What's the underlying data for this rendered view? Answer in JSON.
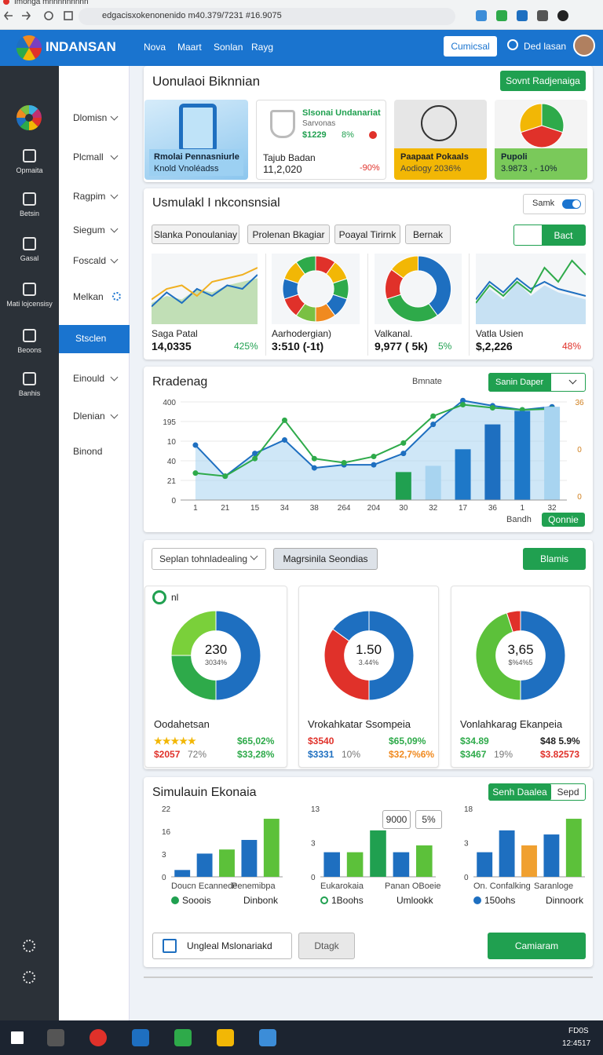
{
  "browser": {
    "tab": "Imonga mnnnnnnnnn",
    "url": "edgacisxokenonenido m40.379/7231 #16.9075"
  },
  "header": {
    "logo": "INDANSAN",
    "nav": [
      "Nova",
      "Maart",
      "Sonlan",
      "Rayg"
    ],
    "button": "Cumicsal",
    "user": "Ded lasan"
  },
  "rail": [
    "Opmaita",
    "Betsin",
    "Gasal",
    "Mati lojcensisy",
    "Beoons",
    "Banhis"
  ],
  "menu": [
    "Dlomisn",
    "Plcmall",
    "Ragpim",
    "Siegum",
    "Foscald",
    "Melkan",
    "Stsclen",
    "Einould",
    "Dlenian",
    "Binond"
  ],
  "overview": {
    "title": "Uonulaoi Biknnian",
    "button": "Sovnt Radjenaiga",
    "tile_a": {
      "label": "Rmolai Pennasniurle",
      "sub": "Knold Vnoléadss"
    },
    "tile_b": {
      "title": "Slsonai Undanariat",
      "subtitle": "Sarvonas",
      "price": "$1229",
      "pct": "8%",
      "label": "Tajub Badan",
      "value": "11,2,020",
      "change": "-90%"
    },
    "tile_c": {
      "label": "Paapaat Pokaals",
      "sub": "Aodiogy 2036%"
    },
    "tile_d": {
      "label": "Pupoli",
      "sub": "3.9873 , - 10%",
      "chart_data": {
        "type": "pie",
        "values": [
          30,
          40,
          30
        ],
        "colors": [
          "#2eaa4a",
          "#e0312a",
          "#f2b705"
        ]
      }
    }
  },
  "insights": {
    "title": "Usmulakl I nkconsnsial",
    "toggle": "Samk",
    "chips": [
      "Slanka Ponoulaniay",
      "Prolenan Bkagiar",
      "Poayal Tirirnk",
      "Bernak"
    ],
    "button": "Bact",
    "charts": [
      {
        "label": "Saga Patal",
        "value": "14,0335",
        "change": "425%",
        "chart_data": {
          "type": "line",
          "ylim": [
            0,
            100
          ],
          "series": [
            {
              "color": "#9fd18a",
              "area": true,
              "values": [
                30,
                40,
                35,
                50,
                45,
                55,
                60,
                65
              ]
            },
            {
              "color": "#1e6fc0",
              "values": [
                25,
                45,
                30,
                50,
                40,
                55,
                50,
                70
              ]
            },
            {
              "color": "#f0b020",
              "values": [
                35,
                50,
                55,
                40,
                60,
                65,
                70,
                80
              ]
            }
          ]
        }
      },
      {
        "label": "Aarhodergian)",
        "value": "3:510 (-1t)",
        "change": "",
        "chart_data": {
          "type": "donut",
          "values": [
            10,
            10,
            10,
            10,
            10,
            10,
            10,
            10,
            10,
            10
          ],
          "colors": [
            "#e0312a",
            "#f2b705",
            "#2eaa4a",
            "#1e6fc0",
            "#f08a20",
            "#7ac043",
            "#e0312a",
            "#1e6fc0",
            "#f2b705",
            "#2eaa4a"
          ]
        }
      },
      {
        "label": "Valkanal.",
        "value": "9,977 ( 5k)",
        "change": "5%",
        "chart_data": {
          "type": "donut",
          "values": [
            40,
            30,
            15,
            15
          ],
          "colors": [
            "#1e6fc0",
            "#2eaa4a",
            "#e0312a",
            "#f2b705"
          ]
        }
      },
      {
        "label": "Vatla Usien",
        "value": "$,2,226",
        "change": "48%",
        "chart_data": {
          "type": "line",
          "ylim": [
            0,
            100
          ],
          "series": [
            {
              "color": "#a8d4f0",
              "area": true,
              "values": [
                30,
                50,
                35,
                60,
                40,
                55,
                45,
                40,
                35
              ]
            },
            {
              "color": "#1e6fc0",
              "values": [
                35,
                60,
                45,
                65,
                50,
                60,
                50,
                45,
                40
              ]
            },
            {
              "color": "#2eaa4a",
              "values": [
                30,
                55,
                40,
                60,
                45,
                80,
                60,
                90,
                70
              ]
            }
          ]
        }
      }
    ]
  },
  "trend": {
    "title": "Rradenag",
    "link": "Bmnate",
    "dropdown": "Sanin Daper",
    "footer": "Bandh",
    "button": "Qonnie",
    "chart_data": {
      "type": "combo",
      "x_labels": [
        "1",
        "21",
        "15",
        "34",
        "38",
        "264",
        "204",
        "30",
        "32",
        "17",
        "36",
        "1",
        "32"
      ],
      "y_labels": [
        "400",
        "195",
        "10",
        "40",
        "21",
        "0"
      ],
      "y2_labels": [
        "36",
        "0",
        "0"
      ],
      "ylim": [
        0,
        100
      ],
      "series": [
        {
          "type": "line",
          "color": "#1e6fc0",
          "area": true,
          "values": [
            53,
            23,
            45,
            58,
            31,
            34,
            34,
            45,
            73,
            96,
            91,
            87,
            90
          ]
        },
        {
          "type": "line",
          "color": "#2eaa4a",
          "values": [
            26,
            23,
            40,
            77,
            40,
            36,
            42,
            55,
            81,
            92,
            89,
            87,
            88
          ]
        },
        {
          "type": "bar",
          "colors": [
            "#20a050",
            "#a8d4f0",
            "#1e78c8",
            "#1e6fc0",
            "#1e78c8",
            "#a8d4f0"
          ],
          "values": [
            null,
            null,
            null,
            null,
            null,
            null,
            null,
            27,
            33,
            49,
            73,
            86,
            90
          ]
        }
      ]
    }
  },
  "segments": {
    "dropdown": "Seplan tohnladealing",
    "button": "Magrsinila Seondias",
    "action": "Blamis",
    "badge": "nl",
    "cards": [
      {
        "center": "230",
        "center_sub": "3034%",
        "title": "Oodahetsan",
        "rows": [
          [
            {
              "text": "★★★★★",
              "color": "#f2b705"
            },
            {
              "text": "$65,02%",
              "color": "#2eaa4a"
            }
          ],
          [
            {
              "text": "$2057",
              "color": "#e0312a"
            },
            {
              "text": "72%",
              "color": "#777"
            },
            {
              "text": "$33,28%",
              "color": "#2eaa4a"
            }
          ]
        ],
        "chart_data": {
          "type": "donut",
          "values": [
            50,
            25,
            25
          ],
          "colors": [
            "#1e6fc0",
            "#2eaa4a",
            "#7ad03a"
          ]
        }
      },
      {
        "center": "1.50",
        "center_sub": "3.44%",
        "title": "Vrokahkatar Ssompeia",
        "rows": [
          [
            {
              "text": "$3540",
              "color": "#e0312a"
            },
            {
              "text": "$65,09%",
              "color": "#2eaa4a"
            }
          ],
          [
            {
              "text": "$3331",
              "color": "#1e6fc0"
            },
            {
              "text": "10%",
              "color": "#777"
            },
            {
              "text": "$32,7%6%",
              "color": "#f08a20"
            }
          ]
        ],
        "chart_data": {
          "type": "donut",
          "values": [
            50,
            35,
            15
          ],
          "colors": [
            "#1e6fc0",
            "#e0312a",
            "#1e6fc0"
          ]
        }
      },
      {
        "center": "3,65",
        "center_sub": "$%4%5",
        "title": "Vonlahkarag Ekanpeia",
        "rows": [
          [
            {
              "text": "$34.89",
              "color": "#2eaa4a"
            },
            {
              "text": "$48 5.9%",
              "color": "#222"
            }
          ],
          [
            {
              "text": "$3467",
              "color": "#2eaa4a"
            },
            {
              "text": "19%",
              "color": "#777"
            },
            {
              "text": "$3.82573",
              "color": "#e0312a"
            }
          ]
        ],
        "chart_data": {
          "type": "donut",
          "values": [
            50,
            45,
            5
          ],
          "colors": [
            "#1e6fc0",
            "#5cc13a",
            "#e0312a"
          ]
        }
      }
    ]
  },
  "economy": {
    "title": "Simulauin Ekonaia",
    "tabs": [
      "Senh Daalea",
      "Sepd"
    ],
    "boxes": [
      "9000",
      "5%"
    ],
    "groups": [
      {
        "y_labels": [
          "22",
          "16",
          "3",
          "0"
        ],
        "labels": [
          "Doucn Ecannede",
          "Penemibpa"
        ],
        "legend": [
          "Sooois",
          "Dinbonk"
        ],
        "chart_data": {
          "type": "bar",
          "ylim": [
            0,
            100
          ],
          "values": [
            10,
            34,
            40,
            54,
            85
          ],
          "colors": [
            "#1e6fc0",
            "#1e6fc0",
            "#5cc13a",
            "#1e6fc0",
            "#5cc13a"
          ]
        }
      },
      {
        "y_labels": [
          "13",
          "3",
          "0"
        ],
        "labels": [
          "Eukarokaia",
          "Panan OBoeie"
        ],
        "legend": [
          "1Boohs",
          "Umlookk"
        ],
        "chart_data": {
          "type": "bar",
          "ylim": [
            0,
            100
          ],
          "values": [
            36,
            36,
            68,
            36,
            46
          ],
          "colors": [
            "#1e6fc0",
            "#5cc13a",
            "#20a050",
            "#1e6fc0",
            "#5cc13a"
          ]
        }
      },
      {
        "y_labels": [
          "18",
          "3",
          "0"
        ],
        "labels": [
          "On. Confalking",
          "Saranloge"
        ],
        "legend": [
          "150ohs",
          "Dinnoork"
        ],
        "chart_data": {
          "type": "bar",
          "ylim": [
            0,
            100
          ],
          "values": [
            36,
            68,
            46,
            62,
            85
          ],
          "colors": [
            "#1e6fc0",
            "#1e6fc0",
            "#f0a030",
            "#1e6fc0",
            "#5cc13a"
          ]
        }
      }
    ],
    "buttons": [
      "Ungleal Mslonariakd",
      "Dtagk",
      "Camiaram"
    ]
  },
  "taskbar": {
    "label": "FD0S",
    "time": "12:4517"
  }
}
